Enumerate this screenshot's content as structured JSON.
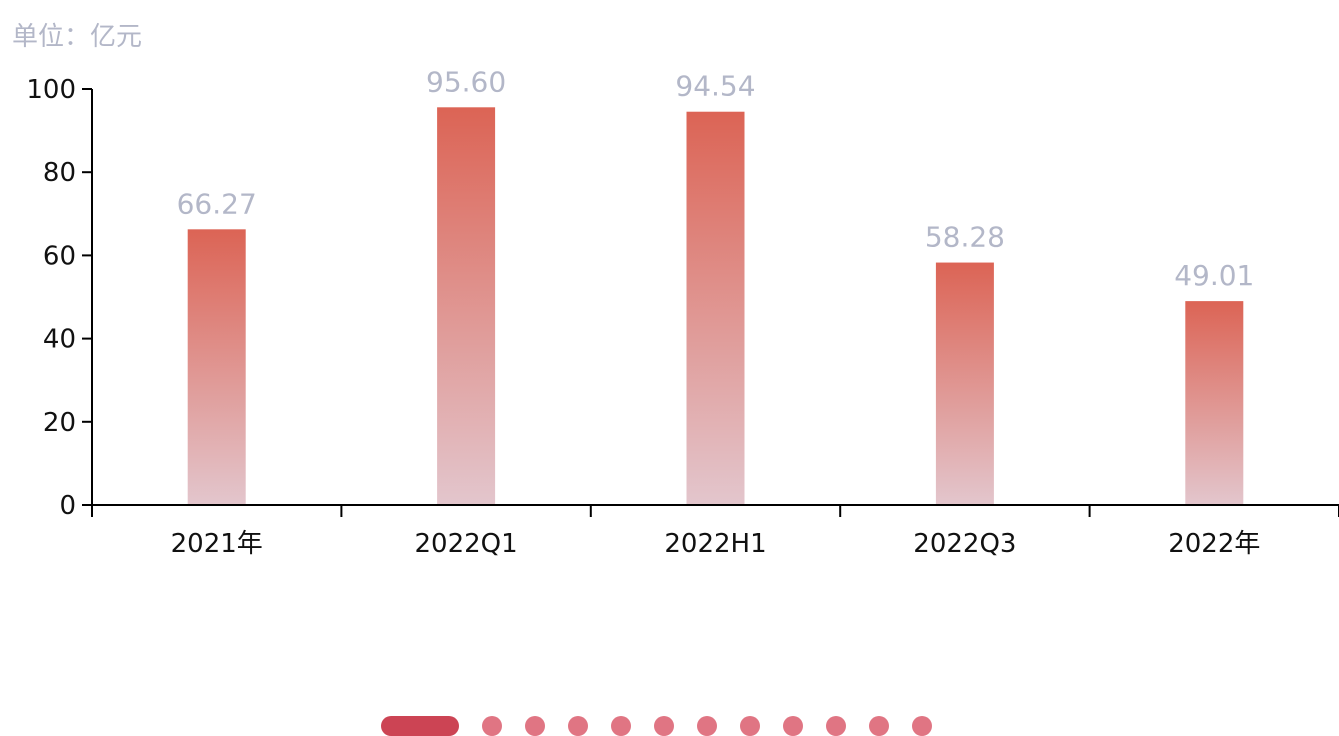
{
  "unit_label": "单位：亿元",
  "chart_data": {
    "type": "bar",
    "categories": [
      "2021年",
      "2022Q1",
      "2022H1",
      "2022Q3",
      "2022年"
    ],
    "values": [
      66.27,
      95.6,
      94.54,
      58.28,
      49.01
    ],
    "value_labels": [
      "66.27",
      "95.60",
      "94.54",
      "58.28",
      "49.01"
    ],
    "y_ticks": [
      "0",
      "20",
      "40",
      "60",
      "80",
      "100"
    ],
    "ylim": [
      0,
      100
    ],
    "grid": false,
    "colors": {
      "bar_top": "#dc6455",
      "bar_bottom": "#e3c6cd",
      "value_label": "#b3b7c8",
      "axis": "#000000"
    }
  },
  "pager": {
    "total": 12,
    "active_index": 0,
    "active_color": "#cc4454",
    "dot_color": "#e07583"
  }
}
